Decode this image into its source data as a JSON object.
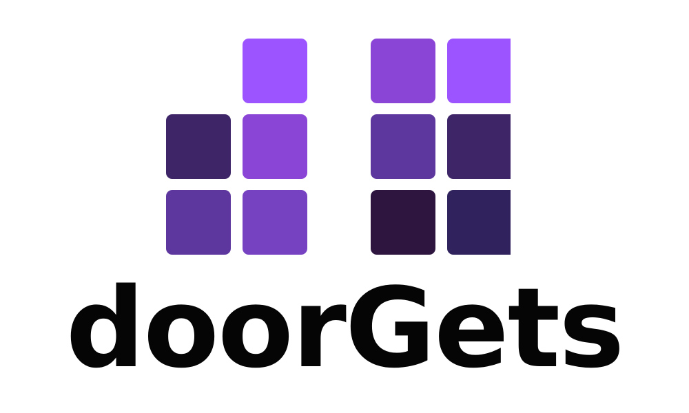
{
  "logo": {
    "wordmark": "doorGets",
    "tile_colors": {
      "left_top": "#9b54ff",
      "left_mid_left": "#3d2567",
      "left_mid_right": "#8a45d6",
      "left_bottom_left": "#5e379e",
      "left_bottom_right": "#7742c2",
      "right_top_left": "#8a45d6",
      "right_top_right": "#9b54ff",
      "right_mid_left": "#5e379e",
      "right_mid_right": "#3d2567",
      "right_bottom_left": "#2d1540",
      "right_bottom_right": "#30235d"
    },
    "wordmark_color": "#050505"
  }
}
